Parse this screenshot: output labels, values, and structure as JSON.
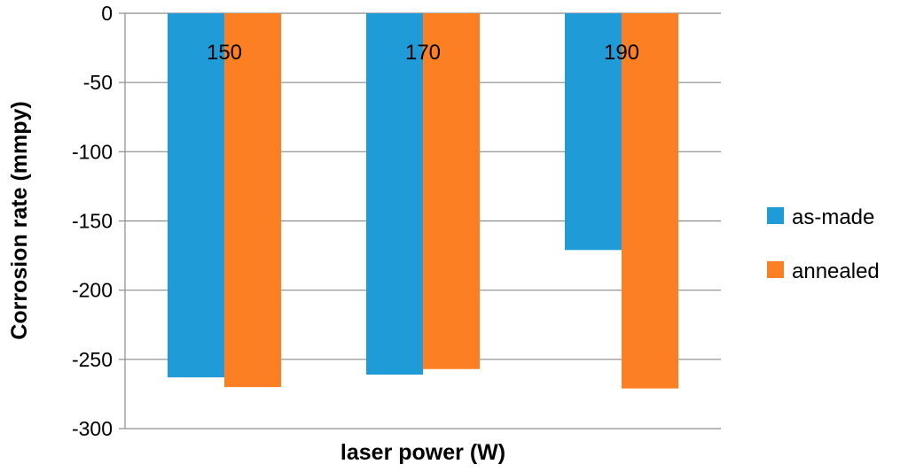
{
  "chart_data": {
    "type": "bar",
    "categories": [
      "150",
      "170",
      "190"
    ],
    "series": [
      {
        "name": "as-made",
        "values": [
          -263,
          -261,
          -171
        ],
        "color": "#1f9bd7"
      },
      {
        "name": "annealed",
        "values": [
          -270,
          -257,
          -271
        ],
        "color": "#fd7f23"
      }
    ],
    "xlabel": "laser power (W)",
    "ylabel": "Corrosion rate (mmpy)",
    "ylim": [
      -300,
      0
    ],
    "yticks": [
      0,
      -50,
      -100,
      -150,
      -200,
      -250,
      -300
    ],
    "grid": true,
    "legend_position": "right",
    "category_labels_position": "top"
  }
}
